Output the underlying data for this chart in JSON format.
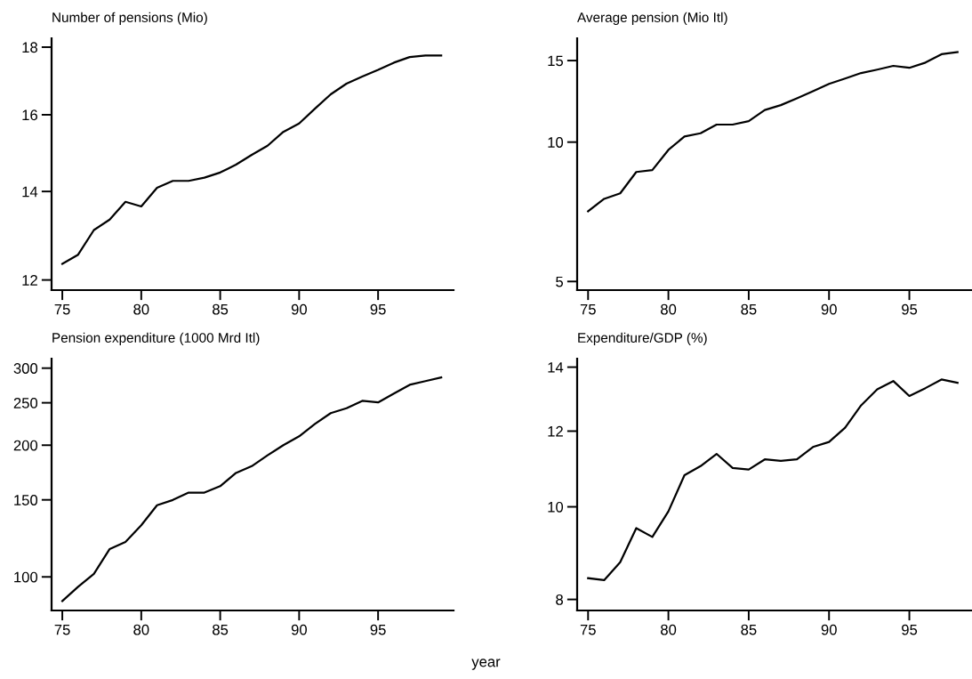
{
  "chart_data": [
    {
      "type": "line",
      "title": "Number of pensions (Mio)",
      "log": "y",
      "x": [
        75,
        76,
        77,
        78,
        79,
        80,
        81,
        82,
        83,
        84,
        85,
        86,
        87,
        88,
        89,
        90,
        91,
        92,
        93,
        94,
        95,
        96,
        97,
        98,
        99
      ],
      "series": [
        {
          "color": "#000000",
          "values": [
            12.34,
            12.54,
            13.09,
            13.33,
            13.75,
            13.64,
            14.09,
            14.26,
            14.26,
            14.34,
            14.47,
            14.67,
            14.92,
            15.16,
            15.53,
            15.76,
            16.17,
            16.58,
            16.89,
            17.1,
            17.3,
            17.52,
            17.69,
            17.74,
            17.74
          ]
        }
      ],
      "xlim": [
        74.32,
        99.78
      ],
      "xticks": [
        75,
        80,
        85,
        90,
        95
      ],
      "ylim": [
        11.79,
        18.28
      ],
      "yticks": [
        12,
        14,
        16,
        18
      ],
      "grid": false
    },
    {
      "type": "line",
      "title": "Average pension (Mio Itl)",
      "log": "y",
      "x": [
        75,
        76,
        77,
        78,
        79,
        80,
        81,
        82,
        83,
        84,
        85,
        86,
        87,
        88,
        89,
        90,
        91,
        92,
        93,
        94,
        95,
        96,
        97,
        98
      ],
      "series": [
        {
          "color": "#000000",
          "values": [
            7.09,
            7.54,
            7.75,
            8.62,
            8.7,
            9.62,
            10.28,
            10.45,
            10.91,
            10.91,
            11.1,
            11.73,
            12.02,
            12.43,
            12.88,
            13.36,
            13.72,
            14.1,
            14.34,
            14.61,
            14.47,
            14.85,
            15.48,
            15.65
          ]
        }
      ],
      "xlim": [
        74.32,
        98.9
      ],
      "xticks": [
        75,
        80,
        85,
        90,
        95
      ],
      "ylim": [
        4.79,
        16.76
      ],
      "yticks": [
        5,
        10,
        15
      ],
      "grid": false
    },
    {
      "type": "line",
      "title": "Pension expenditure (1000 Mrd Itl)",
      "log": "y",
      "x": [
        75,
        76,
        77,
        78,
        79,
        80,
        81,
        82,
        83,
        84,
        85,
        86,
        87,
        88,
        89,
        90,
        91,
        92,
        93,
        94,
        95,
        96,
        97,
        98,
        99
      ],
      "series": [
        {
          "color": "#000000",
          "values": [
            88.1,
            94.9,
            101.6,
            115.8,
            120.2,
            131.2,
            145.8,
            149.9,
            155.8,
            155.8,
            161.2,
            172.8,
            179.1,
            189.6,
            200,
            209.6,
            223.7,
            236.7,
            242.9,
            252.6,
            250.5,
            262.5,
            274.8,
            280.2,
            285.7
          ]
        }
      ],
      "xlim": [
        74.32,
        99.78
      ],
      "xticks": [
        75,
        80,
        85,
        90,
        95
      ],
      "ylim": [
        83.8,
        315.4
      ],
      "yticks": [
        100,
        150,
        200,
        250,
        300
      ],
      "grid": false
    },
    {
      "type": "line",
      "title": "Expenditure/GDP (%)",
      "xlabel": "year",
      "log": "y",
      "x": [
        75,
        76,
        77,
        78,
        79,
        80,
        81,
        82,
        83,
        84,
        85,
        86,
        87,
        88,
        89,
        90,
        91,
        92,
        93,
        94,
        95,
        96,
        97,
        98
      ],
      "series": [
        {
          "color": "#000000",
          "values": [
            8.42,
            8.38,
            8.75,
            9.5,
            9.3,
            9.89,
            10.79,
            11.03,
            11.36,
            10.98,
            10.94,
            11.21,
            11.17,
            11.21,
            11.55,
            11.69,
            12.1,
            12.77,
            13.27,
            13.54,
            13.06,
            13.31,
            13.59,
            13.48
          ]
        }
      ],
      "xlim": [
        74.32,
        98.9
      ],
      "xticks": [
        75,
        80,
        85,
        90,
        95
      ],
      "ylim": [
        7.79,
        14.29
      ],
      "yticks": [
        8,
        10,
        12,
        14
      ],
      "grid": false
    }
  ]
}
